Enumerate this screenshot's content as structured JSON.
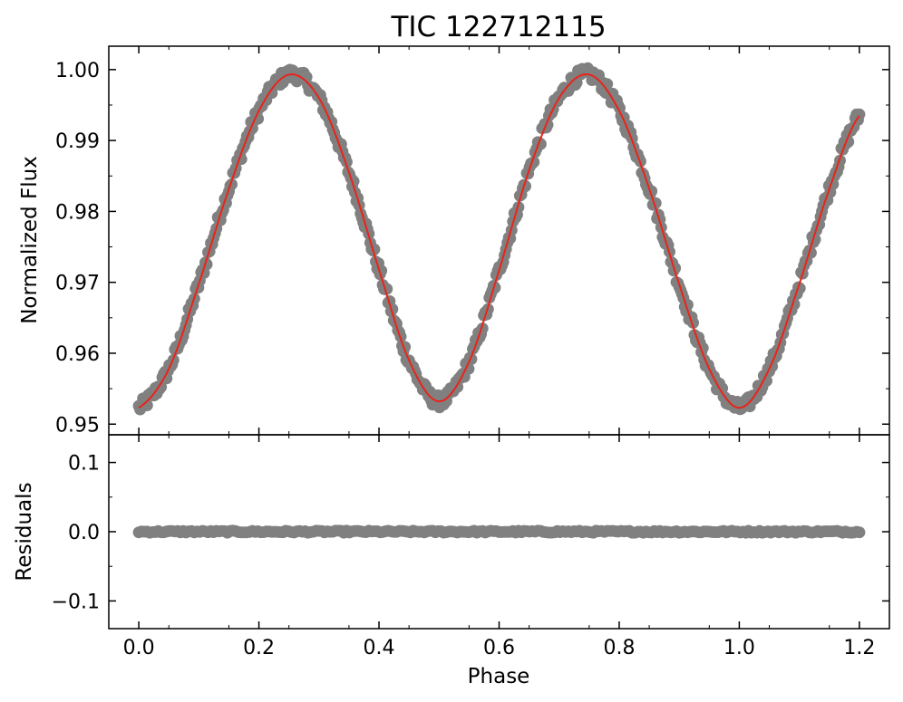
{
  "chart_data": {
    "type": "scatter",
    "title": "TIC 122712115",
    "xlabel": "Phase",
    "xlim": [
      -0.05,
      1.25
    ],
    "xticks": [
      0.0,
      0.2,
      0.4,
      0.6,
      0.8,
      1.0,
      1.2
    ],
    "xtick_labels": [
      "0.0",
      "0.2",
      "0.4",
      "0.6",
      "0.8",
      "1.0",
      "1.2"
    ],
    "panels": [
      {
        "name": "flux",
        "ylabel": "Normalized Flux",
        "ylim": [
          0.9485,
          1.0033
        ],
        "yticks": [
          0.95,
          0.96,
          0.97,
          0.98,
          0.99,
          1.0
        ],
        "ytick_labels": [
          "0.95",
          "0.96",
          "0.97",
          "0.98",
          "0.99",
          "1.00"
        ],
        "data_color": "#808080",
        "model_color": "#e8241a",
        "model_points": [
          [
            0.0,
            0.9523
          ],
          [
            0.05,
            0.9578
          ],
          [
            0.1,
            0.9698
          ],
          [
            0.15,
            0.9832
          ],
          [
            0.2,
            0.9942
          ],
          [
            0.25,
            0.9993
          ],
          [
            0.3,
            0.996
          ],
          [
            0.35,
            0.9855
          ],
          [
            0.4,
            0.9718
          ],
          [
            0.45,
            0.959
          ],
          [
            0.5,
            0.9532
          ],
          [
            0.55,
            0.9588
          ],
          [
            0.6,
            0.9717
          ],
          [
            0.65,
            0.9858
          ],
          [
            0.7,
            0.996
          ],
          [
            0.75,
            0.9993
          ],
          [
            0.8,
            0.9942
          ],
          [
            0.85,
            0.9832
          ],
          [
            0.9,
            0.9697
          ],
          [
            0.95,
            0.9578
          ],
          [
            1.0,
            0.9523
          ],
          [
            1.05,
            0.9578
          ],
          [
            1.1,
            0.9698
          ],
          [
            1.15,
            0.9832
          ],
          [
            1.2,
            0.9935
          ]
        ]
      },
      {
        "name": "residuals",
        "ylabel": "Residuals",
        "ylim": [
          -0.14,
          0.14
        ],
        "yticks": [
          -0.1,
          0.0,
          0.1
        ],
        "ytick_labels": [
          "−0.1",
          "0.0",
          "0.1"
        ],
        "data_color": "#808080",
        "residual_level": 0.0,
        "residual_spread": 0.0015
      }
    ]
  }
}
